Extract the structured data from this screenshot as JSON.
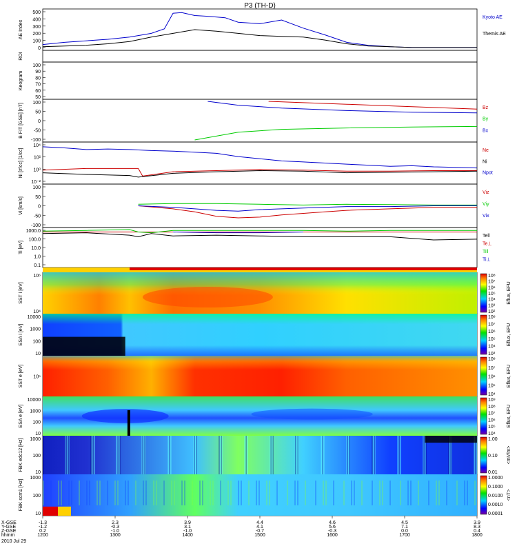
{
  "chart_data": {
    "type": "multi-panel time series",
    "title": "P3 (TH-D)",
    "time_axis": {
      "ticks": [
        "1200",
        "1300",
        "1400",
        "1500",
        "1600",
        "1700",
        "1800"
      ],
      "x_re_gse": [
        "-1.3",
        "2.3",
        "3.9",
        "4.4",
        "4.6",
        "4.5",
        "3.9"
      ],
      "y_re_gse": [
        "-1.2",
        "-0.3",
        "3.1",
        "4.1",
        "5.6",
        "7.1",
        "8.3"
      ],
      "z_re_gse": [
        "0.2",
        "-1.0",
        "-1.0",
        "-0.7",
        "-0.3",
        "0.0",
        "0.4"
      ],
      "row_labels": [
        "X-GSE",
        "Y-GSE",
        "Z-GSE",
        "hhmm"
      ],
      "date": "2010 Jul 29"
    },
    "panels": [
      {
        "id": "ae",
        "ylabel": "AE Index",
        "yticks": [
          "500",
          "400",
          "300",
          "200",
          "100",
          "0"
        ],
        "ylim": [
          0,
          500
        ],
        "series": [
          {
            "name": "Kyoto AE",
            "color": "#0000cc",
            "x": [
              0,
              0.05,
              0.1,
              0.15,
              0.2,
              0.25,
              0.28,
              0.3,
              0.32,
              0.35,
              0.38,
              0.42,
              0.45,
              0.5,
              0.55,
              0.6,
              0.65,
              0.7,
              0.75,
              0.8,
              0.85,
              0.9,
              0.95,
              1.0
            ],
            "y": [
              50,
              80,
              100,
              120,
              150,
              200,
              260,
              470,
              480,
              440,
              430,
              410,
              350,
              330,
              380,
              270,
              180,
              80,
              40,
              20,
              10,
              10,
              10,
              10
            ]
          },
          {
            "name": "Themis AE",
            "color": "#000000",
            "x": [
              0,
              0.05,
              0.1,
              0.15,
              0.2,
              0.25,
              0.3,
              0.35,
              0.4,
              0.45,
              0.5,
              0.55,
              0.6,
              0.65,
              0.7,
              0.75,
              0.8,
              0.85,
              0.9,
              0.95,
              1.0
            ],
            "y": [
              20,
              30,
              40,
              60,
              90,
              150,
              200,
              250,
              230,
              200,
              170,
              160,
              150,
              110,
              60,
              30,
              20,
              10,
              10,
              10,
              10
            ]
          }
        ]
      },
      {
        "id": "roi",
        "ylabel": "ROI"
      },
      {
        "id": "keogram",
        "ylabel": "Keogram",
        "yticks": [
          "100",
          "90",
          "80",
          "70",
          "60",
          "50"
        ]
      },
      {
        "id": "bfit",
        "ylabel": "B FIT [GSE] [nT]",
        "yticks": [
          "100",
          "50",
          "0",
          "-50",
          "-100"
        ],
        "ylim": [
          -100,
          100
        ],
        "series": [
          {
            "name": "Bz",
            "color": "#cc0000",
            "x": [
              0.52,
              0.7,
              0.85,
              1.0
            ],
            "y": [
              100,
              85,
              72,
              60
            ]
          },
          {
            "name": "By",
            "color": "#00cc00",
            "x": [
              0.35,
              0.45,
              0.55,
              0.7,
              0.85,
              1.0
            ],
            "y": [
              -100,
              -60,
              -45,
              -38,
              -33,
              -30
            ]
          },
          {
            "name": "Bx",
            "color": "#0000cc",
            "x": [
              0.38,
              0.45,
              0.55,
              0.7,
              0.85,
              1.0
            ],
            "y": [
              100,
              80,
              65,
              52,
              44,
              40
            ]
          }
        ]
      },
      {
        "id": "density",
        "ylabel": "Ni [#/cc] [1/cc]",
        "yticks": [
          "10⁴",
          "10²",
          "10⁰",
          "10⁻²"
        ],
        "ylim": [
          -2.5,
          4.5
        ],
        "series": [
          {
            "name": "Ne",
            "color": "#cc0000",
            "x": [
              0,
              0.1,
              0.2,
              0.22,
              0.23,
              0.3,
              0.4,
              0.5,
              0.6,
              0.7,
              0.8,
              0.9,
              1.0
            ],
            "y": [
              -0.3,
              0,
              0,
              0,
              -1.4,
              -0.6,
              -0.4,
              -0.2,
              -0.3,
              -0.5,
              -0.5,
              -0.4,
              -0.4
            ]
          },
          {
            "name": "Ni",
            "color": "#000000",
            "x": [
              0,
              0.1,
              0.2,
              0.22,
              0.3,
              0.4,
              0.5,
              0.6,
              0.7,
              0.8,
              0.9,
              1.0
            ],
            "y": [
              -0.8,
              -1.1,
              -1.3,
              -1.6,
              -0.9,
              -0.6,
              -0.4,
              -0.5,
              -0.8,
              -0.7,
              -0.6,
              -0.5
            ]
          },
          {
            "name": "Npot",
            "color": "#0000cc",
            "x": [
              0,
              0.05,
              0.1,
              0.15,
              0.2,
              0.25,
              0.3,
              0.35,
              0.4,
              0.45,
              0.5,
              0.55,
              0.6,
              0.65,
              0.7,
              0.75,
              0.8,
              0.85,
              0.9,
              0.95,
              1.0
            ],
            "y": [
              4,
              3.8,
              3.5,
              3.6,
              3.5,
              3.3,
              3.2,
              3.0,
              2.8,
              2.2,
              1.8,
              1.4,
              1.2,
              1.0,
              0.8,
              0.6,
              0.4,
              0.5,
              0.3,
              0.2,
              0.1
            ]
          }
        ]
      },
      {
        "id": "velocity",
        "ylabel": "Vi [km/s]",
        "yticks": [
          "100",
          "50",
          "0",
          "-50",
          "-100"
        ],
        "ylim": [
          -130,
          130
        ],
        "series": [
          {
            "name": "Viz",
            "color": "#cc0000",
            "x": [
              0.22,
              0.3,
              0.35,
              0.4,
              0.45,
              0.5,
              0.55,
              0.6,
              0.65,
              0.7,
              0.8,
              0.9,
              1.0
            ],
            "y": [
              0,
              -20,
              -40,
              -70,
              -80,
              -75,
              -60,
              -50,
              -40,
              -30,
              -20,
              -10,
              -10
            ]
          },
          {
            "name": "Viy",
            "color": "#00cc00",
            "x": [
              0.22,
              0.3,
              0.4,
              0.5,
              0.6,
              0.7,
              0.8,
              0.9,
              1.0
            ],
            "y": [
              10,
              15,
              15,
              10,
              5,
              10,
              8,
              5,
              5
            ]
          },
          {
            "name": "Vix",
            "color": "#0000cc",
            "x": [
              0.22,
              0.3,
              0.4,
              0.45,
              0.5,
              0.6,
              0.7,
              0.8,
              0.9,
              1.0
            ],
            "y": [
              0,
              -10,
              -30,
              -35,
              -25,
              -15,
              -5,
              -5,
              0,
              0
            ]
          }
        ]
      },
      {
        "id": "temperature",
        "ylabel": "Ti [eV]",
        "yticks": [
          "1000.0",
          "100.0",
          "10.0",
          "1.0",
          "0.1"
        ],
        "ylim": [
          -1.2,
          3.3
        ],
        "series": [
          {
            "name": "Tell",
            "color": "#000000",
            "x": [
              0,
              0.1,
              0.2,
              0.22,
              0.25,
              0.3,
              0.4,
              0.5,
              0.6,
              0.7,
              0.8,
              0.85,
              0.9,
              1.0
            ],
            "y": [
              2.8,
              2.9,
              2.6,
              2.4,
              2.8,
              2.5,
              2.6,
              2.5,
              2.4,
              2.4,
              2.4,
              2.2,
              2.0,
              2.1
            ]
          },
          {
            "name": "Te⊥",
            "color": "#cc0000",
            "x": [
              0,
              0.2,
              0.4,
              0.6,
              0.8,
              1.0
            ],
            "y": [
              3.0,
              3.0,
              3.0,
              3.0,
              3.0,
              3.0
            ]
          },
          {
            "name": "Ti‖",
            "color": "#00cc00",
            "x": [
              0,
              0.1,
              0.2,
              0.22,
              0.25,
              0.3,
              0.4,
              0.5,
              0.6,
              0.7,
              0.8,
              0.9,
              1.0
            ],
            "y": [
              3.1,
              3.2,
              3.3,
              3.0,
              2.9,
              3.2,
              3.2,
              3.2,
              3.2,
              3.1,
              3.2,
              3.2,
              3.2
            ]
          },
          {
            "name": "Ti⊥",
            "color": "#0000cc",
            "x": [
              0.3,
              0.4,
              0.5,
              0.6
            ],
            "y": [
              3.0,
              2.9,
              2.9,
              3.0
            ]
          }
        ]
      },
      {
        "id": "sst_i",
        "ylabel": "SST i [eV]",
        "type": "heatmap",
        "yticks": [
          "10⁶",
          "10⁴"
        ],
        "cbar_label": "Eflux, EFU",
        "cbar_ticks": [
          "10⁸",
          "10⁷",
          "10⁶",
          "10⁵",
          "10⁴",
          "10³",
          "10²"
        ]
      },
      {
        "id": "esa_i",
        "ylabel": "ESA i [eV]",
        "type": "heatmap",
        "yticks": [
          "10000",
          "1000",
          "100",
          "10"
        ],
        "cbar_label": "Eflux, EFU",
        "cbar_ticks": [
          "10⁸",
          "10⁷",
          "10⁶",
          "10⁵",
          "10⁴",
          "10³"
        ]
      },
      {
        "id": "sst_e",
        "ylabel": "SST e [eV]",
        "type": "heatmap",
        "yticks": [
          "10⁵"
        ],
        "cbar_label": "Eflux, EFU",
        "cbar_ticks": [
          "10⁸",
          "10⁷",
          "10⁶",
          "10⁵",
          "10⁴"
        ]
      },
      {
        "id": "esa_e",
        "ylabel": "ESA e [eV]",
        "type": "heatmap",
        "yticks": [
          "10000",
          "1000",
          "100",
          "10"
        ],
        "cbar_label": "Eflux, EFU",
        "cbar_ticks": [
          "10⁹",
          "10⁸",
          "10⁷",
          "10⁶",
          "10⁵",
          "10⁴"
        ]
      },
      {
        "id": "fbk_e",
        "ylabel": "FBK edc12 [Hz]",
        "type": "heatmap",
        "yticks": [
          "1000",
          "100",
          "10"
        ],
        "cbar_label": "<mV/m>",
        "cbar_ticks": [
          "1.00",
          "0.10",
          "0.01"
        ]
      },
      {
        "id": "fbk_b",
        "ylabel": "FBK scm1 [Hz]",
        "type": "heatmap",
        "yticks": [
          "1000",
          "100",
          "10"
        ],
        "cbar_label": "<nT>",
        "cbar_ticks": [
          "1.0000",
          "0.1000",
          "0.0100",
          "0.0010",
          "0.0001"
        ]
      }
    ]
  }
}
